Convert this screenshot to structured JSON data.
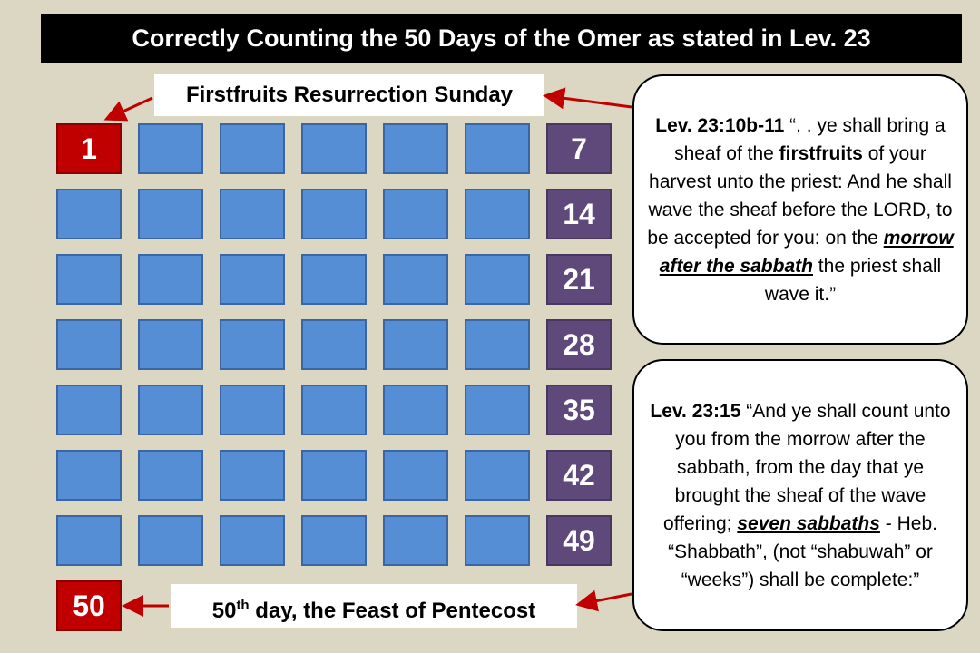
{
  "title": "Correctly Counting the 50 Days of the Omer as stated in Lev. 23",
  "label_top": "Firstfruits Resurrection Sunday",
  "label_bottom": {
    "number": "50",
    "suffix": "th",
    "text": " day, the Feast of Pentecost"
  },
  "grid": {
    "rows": [
      [
        1,
        null,
        null,
        null,
        null,
        null,
        7
      ],
      [
        null,
        null,
        null,
        null,
        null,
        null,
        14
      ],
      [
        null,
        null,
        null,
        null,
        null,
        null,
        21
      ],
      [
        null,
        null,
        null,
        null,
        null,
        null,
        28
      ],
      [
        null,
        null,
        null,
        null,
        null,
        null,
        35
      ],
      [
        null,
        null,
        null,
        null,
        null,
        null,
        42
      ],
      [
        null,
        null,
        null,
        null,
        null,
        null,
        49
      ]
    ],
    "final": 50
  },
  "quotes": [
    {
      "parts": [
        "Lev. 23:10b-11",
        "  “. . ye shall bring a sheaf of the ",
        "firstfruits",
        " of your harvest unto the priest: And he shall wave the sheaf before the LORD, to be accepted for you: on the ",
        "morrow after the sabbath",
        " the priest shall wave it.”"
      ]
    },
    {
      "parts": [
        "Lev. 23:15",
        " “And ye shall count unto you from the morrow after the sabbath, from the day that ye brought the sheaf of the wave offering; ",
        "seven sabbaths",
        " - Heb. “Shabbath”, (not “shabuwah” or “weeks”) shall be complete:”"
      ]
    }
  ]
}
